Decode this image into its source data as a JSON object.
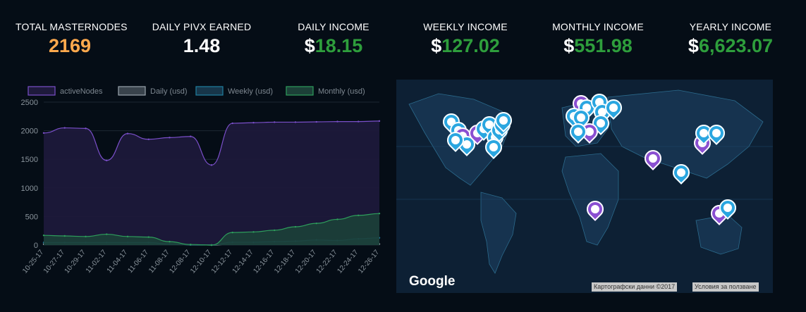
{
  "stats": [
    {
      "label": "TOTAL MASTERNODES",
      "currency": "",
      "value": "2169",
      "color": "#ffa94d"
    },
    {
      "label": "DAILY PIVX EARNED",
      "currency": "",
      "value": "1.48",
      "color": "#ffffff"
    },
    {
      "label": "DAILY INCOME",
      "currency": "$",
      "value": "18.15",
      "color": "#2e9e3c"
    },
    {
      "label": "WEEKLY INCOME",
      "currency": "$",
      "value": "127.02",
      "color": "#2e9e3c"
    },
    {
      "label": "MONTHLY INCOME",
      "currency": "$",
      "value": "551.98",
      "color": "#2e9e3c"
    },
    {
      "label": "YEARLY INCOME",
      "currency": "$",
      "value": "6,623.07",
      "color": "#2e9e3c"
    }
  ],
  "chart_data": {
    "type": "area",
    "x": [
      "10-25-17",
      "10-27-17",
      "10-29-17",
      "11-02-17",
      "11-04-17",
      "11-06-17",
      "11-08-17",
      "12-08-17",
      "12-10-17",
      "12-12-17",
      "12-14-17",
      "12-16-17",
      "12-18-17",
      "12-20-17",
      "12-22-17",
      "12-24-17",
      "12-26-17"
    ],
    "ylim": [
      0,
      2500
    ],
    "yticks": [
      0,
      500,
      1000,
      1500,
      2000,
      2500
    ],
    "legend_position": "top",
    "grid": true,
    "series": [
      {
        "name": "activeNodes",
        "color": "#7a4fc9",
        "fill": "#1e1a3c",
        "values": [
          1960,
          2050,
          2040,
          1480,
          1950,
          1850,
          1880,
          1900,
          1400,
          2130,
          2140,
          2150,
          2150,
          2155,
          2160,
          2160,
          2169
        ]
      },
      {
        "name": "Daily (usd)",
        "color": "#9aa4ad",
        "fill": "#39434c",
        "values": [
          15,
          15,
          15,
          15,
          15,
          15,
          15,
          5,
          0,
          15,
          15,
          15,
          15,
          18,
          18,
          18,
          18
        ]
      },
      {
        "name": "Weekly (usd)",
        "color": "#1f7fa0",
        "fill": "#17364a",
        "values": [
          45,
          45,
          45,
          45,
          45,
          45,
          20,
          5,
          0,
          50,
          50,
          60,
          70,
          90,
          80,
          110,
          127
        ]
      },
      {
        "name": "Monthly (usd)",
        "color": "#2e9e5c",
        "fill": "#1c4038",
        "values": [
          170,
          160,
          150,
          190,
          150,
          140,
          60,
          10,
          0,
          220,
          230,
          260,
          320,
          380,
          450,
          520,
          552
        ]
      }
    ]
  },
  "map": {
    "logo": "Google",
    "attribution": "Картографски данни ©2017",
    "terms": "Условия за ползване"
  }
}
